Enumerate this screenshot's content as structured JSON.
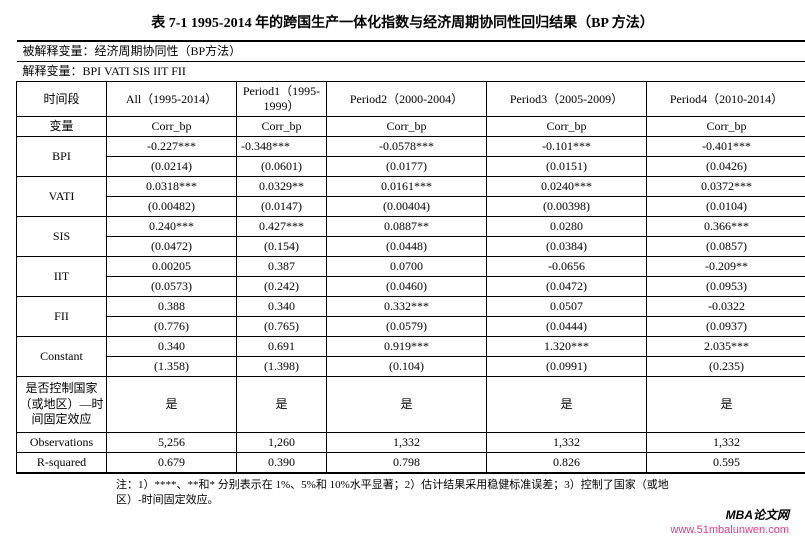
{
  "title": "表 7-1 1995-2014 年的跨国生产一体化指数与经济周期协同性回归结果（BP 方法）",
  "header": {
    "dep": "被解释变量：经济周期协同性（BP方法）",
    "indep": "解释变量：BPI VATI SIS IIT FII"
  },
  "periods": {
    "label": "时间段",
    "all": "All（1995-2014）",
    "p1": "Period1（1995-1999）",
    "p2": "Period2（2000-2004）",
    "p3": "Period3（2005-2009）",
    "p4": "Period4（2010-2014）"
  },
  "varlabel": "变量",
  "depvar": "Corr_bp",
  "rows": {
    "BPI": {
      "name": "BPI",
      "c": [
        "-0.227***",
        "-0.348***",
        "-0.0578***",
        "-0.101***",
        "-0.401***"
      ],
      "se": [
        "(0.0214)",
        "(0.0601)",
        "(0.0177)",
        "(0.0151)",
        "(0.0426)"
      ]
    },
    "VATI": {
      "name": "VATI",
      "c": [
        "0.0318***",
        "0.0329**",
        "0.0161***",
        "0.0240***",
        "0.0372***"
      ],
      "se": [
        "(0.00482)",
        "(0.0147)",
        "(0.00404)",
        "(0.00398)",
        "(0.0104)"
      ]
    },
    "SIS": {
      "name": "SIS",
      "c": [
        "0.240***",
        "0.427***",
        "0.0887**",
        "0.0280",
        "0.366***"
      ],
      "se": [
        "(0.0472)",
        "(0.154)",
        "(0.0448)",
        "(0.0384)",
        "(0.0857)"
      ]
    },
    "IIT": {
      "name": "IIT",
      "c": [
        "0.00205",
        "0.387",
        "0.0700",
        "-0.0656",
        "-0.209**"
      ],
      "se": [
        "(0.0573)",
        "(0.242)",
        "(0.0460)",
        "(0.0472)",
        "(0.0953)"
      ]
    },
    "FII": {
      "name": "FII",
      "c": [
        "0.388",
        "0.340",
        "0.332***",
        "0.0507",
        "-0.0322"
      ],
      "se": [
        "(0.776)",
        "(0.765)",
        "(0.0579)",
        "(0.0444)",
        "(0.0937)"
      ]
    },
    "Constant": {
      "name": "Constant",
      "c": [
        "0.340",
        "0.691",
        "0.919***",
        "1.320***",
        "2.035***"
      ],
      "se": [
        "(1.358)",
        "(1.398)",
        "(0.104)",
        "(0.0991)",
        "(0.235)"
      ]
    }
  },
  "fe": {
    "label": "是否控制国家（或地区）—时间固定效应",
    "val": "是"
  },
  "obs": {
    "label": "Observations",
    "v": [
      "5,256",
      "1,260",
      "1,332",
      "1,332",
      "1,332"
    ]
  },
  "r2": {
    "label": "R-squared",
    "v": [
      "0.679",
      "0.390",
      "0.798",
      "0.826",
      "0.595"
    ]
  },
  "footnote": "注：1）****、**和* 分别表示在 1%、5%和 10%水平显著；2）估计结果采用稳健标准误差；3）控制了国家（或地区）-时间固定效应。",
  "brand": {
    "main": "MBA论文网",
    "url": "www.51mbalunwen.com"
  }
}
